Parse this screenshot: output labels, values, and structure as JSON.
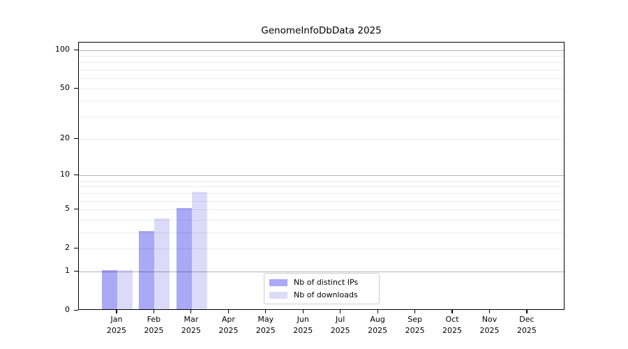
{
  "title": "GenomeInfoDbData 2025",
  "chart_data": {
    "type": "bar",
    "title": "GenomeInfoDbData 2025",
    "categories": [
      "Jan",
      "Feb",
      "Mar",
      "Apr",
      "May",
      "Jun",
      "Jul",
      "Aug",
      "Sep",
      "Oct",
      "Nov",
      "Dec"
    ],
    "year": "2025",
    "series": [
      {
        "name": "Nb of distinct IPs",
        "color": "#a9a9f5",
        "values": [
          1,
          3,
          5,
          0,
          0,
          0,
          0,
          0,
          0,
          0,
          0,
          0
        ]
      },
      {
        "name": "Nb of downloads",
        "color": "#dbdbf9",
        "values": [
          1,
          4,
          7,
          0,
          0,
          0,
          0,
          0,
          0,
          0,
          0,
          0
        ]
      }
    ],
    "xlabel": "",
    "ylabel": "",
    "yscale": "log1p",
    "ylim": [
      0,
      114
    ],
    "yticks": [
      0,
      1,
      2,
      5,
      10,
      20,
      50,
      100
    ],
    "grid": {
      "major": [
        1,
        10,
        100
      ],
      "minor": [
        2,
        3,
        4,
        5,
        6,
        7,
        8,
        9,
        20,
        30,
        40,
        50,
        60,
        70,
        80,
        90
      ]
    },
    "legend_position": "lower center",
    "legend_entries": [
      "Nb of distinct IPs",
      "Nb of downloads"
    ]
  },
  "colors": {
    "bar_distinct_ips": "#a9a9f5",
    "bar_downloads": "#dbdbf9",
    "grid_major": "#b0b0b0",
    "grid_minor": "#ececec",
    "axis": "#000000",
    "legend_border": "#cccccc",
    "background": "#ffffff"
  }
}
